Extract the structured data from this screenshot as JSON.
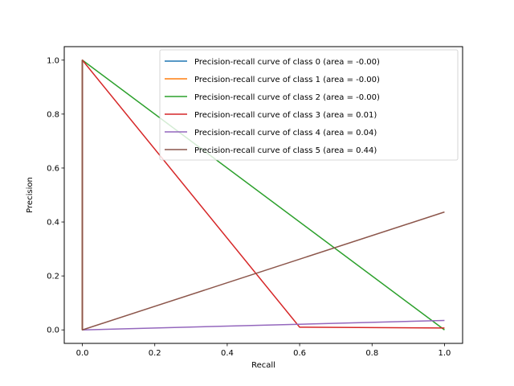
{
  "chart_data": {
    "type": "line",
    "title": "",
    "xlabel": "Recall",
    "ylabel": "Precision",
    "xlim": [
      -0.05,
      1.05
    ],
    "ylim": [
      -0.05,
      1.05
    ],
    "xticks": [
      0.0,
      0.2,
      0.4,
      0.6,
      0.8,
      1.0
    ],
    "yticks": [
      0.0,
      0.2,
      0.4,
      0.6,
      0.8,
      1.0
    ],
    "xtick_labels": [
      "0.0",
      "0.2",
      "0.4",
      "0.6",
      "0.8",
      "1.0"
    ],
    "ytick_labels": [
      "0.0",
      "0.2",
      "0.4",
      "0.6",
      "0.8",
      "1.0"
    ],
    "grid": false,
    "legend_position": "top-right",
    "series": [
      {
        "name": "Precision-recall curve of class 0 (area = -0.00)",
        "color": "#1f77b4",
        "x": [
          0,
          0
        ],
        "y": [
          0,
          1
        ]
      },
      {
        "name": "Precision-recall curve of class 1 (area = -0.00)",
        "color": "#ff7f0e",
        "x": [
          0,
          0
        ],
        "y": [
          0,
          1
        ]
      },
      {
        "name": "Precision-recall curve of class 2 (area = -0.00)",
        "color": "#2ca02c",
        "x": [
          0,
          0,
          1
        ],
        "y": [
          0,
          1,
          0
        ]
      },
      {
        "name": "Precision-recall curve of class 3 (area = 0.01)",
        "color": "#d62728",
        "x": [
          0,
          0,
          0.6,
          1
        ],
        "y": [
          0,
          1,
          0.01,
          0.007
        ]
      },
      {
        "name": "Precision-recall curve of class 4 (area = 0.04)",
        "color": "#9467bd",
        "x": [
          0,
          1
        ],
        "y": [
          0,
          0.035
        ]
      },
      {
        "name": "Precision-recall curve of class 5 (area = 0.44)",
        "color": "#8c564b",
        "x": [
          0,
          0,
          1
        ],
        "y": [
          1,
          0,
          0.437
        ]
      }
    ]
  }
}
